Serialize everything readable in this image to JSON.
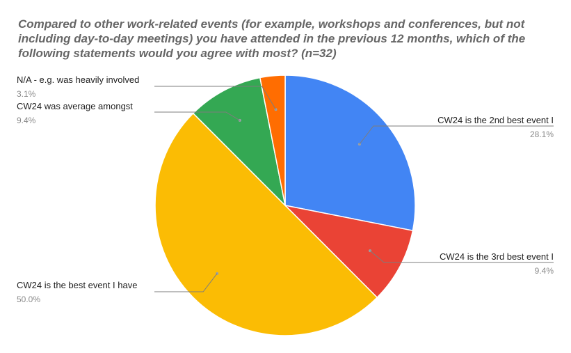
{
  "chart_data": {
    "type": "pie",
    "title": "Compared to other work-related events (for example, workshops and conferences, but not including day-to-day meetings) you have attended in the previous 12 months, which of the following statements would you agree with most? (n=32)",
    "slices": [
      {
        "label": "CW24 is the 2nd best event I",
        "percent_label": "28.1%",
        "value": 28.1,
        "color": "#4285F4"
      },
      {
        "label": "CW24 is the 3rd best event I",
        "percent_label": "9.4%",
        "value": 9.4,
        "color": "#EA4335"
      },
      {
        "label": "CW24 is the best event I have",
        "percent_label": "50.0%",
        "value": 50.0,
        "color": "#FBBC04"
      },
      {
        "label": "CW24 was average amongst",
        "percent_label": "9.4%",
        "value": 9.4,
        "color": "#34A853"
      },
      {
        "label": "N/A - e.g. was heavily involved",
        "percent_label": "3.1%",
        "value": 3.1,
        "color": "#FF6D01"
      }
    ],
    "legend": "none",
    "labels_position": "outside with leader lines"
  }
}
